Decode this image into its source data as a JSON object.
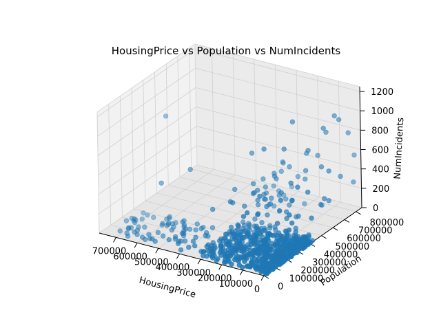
{
  "chart_data": {
    "type": "scatter",
    "title": "HousingPrice vs Population vs NumIncidents",
    "xlabel": "HousingPrice",
    "ylabel": "Population",
    "zlabel": "NumIncidents",
    "xlim": [
      0,
      780000
    ],
    "ylim": [
      0,
      850000
    ],
    "zlim": [
      0,
      1250
    ],
    "x_ticks": [
      {
        "value": 0,
        "label": "0"
      },
      {
        "value": 100000,
        "label": "100000"
      },
      {
        "value": 200000,
        "label": "200000"
      },
      {
        "value": 300000,
        "label": "300000"
      },
      {
        "value": 400000,
        "label": "400000"
      },
      {
        "value": 500000,
        "label": "500000"
      },
      {
        "value": 600000,
        "label": "600000"
      },
      {
        "value": 700000,
        "label": "700000"
      }
    ],
    "y_ticks": [
      {
        "value": 0,
        "label": "0"
      },
      {
        "value": 100000,
        "label": "100000"
      },
      {
        "value": 200000,
        "label": "200000"
      },
      {
        "value": 300000,
        "label": "300000"
      },
      {
        "value": 400000,
        "label": "400000"
      },
      {
        "value": 500000,
        "label": "500000"
      },
      {
        "value": 600000,
        "label": "600000"
      },
      {
        "value": 700000,
        "label": "700000"
      },
      {
        "value": 800000,
        "label": "800000"
      }
    ],
    "z_ticks": [
      {
        "value": 0,
        "label": "0"
      },
      {
        "value": 200,
        "label": "200"
      },
      {
        "value": 400,
        "label": "400"
      },
      {
        "value": 600,
        "label": "600"
      },
      {
        "value": 800,
        "label": "800"
      },
      {
        "value": 1000,
        "label": "1000"
      },
      {
        "value": 1200,
        "label": "1200"
      }
    ],
    "grid": true,
    "marker_color": "#1f77b4",
    "pane_colors": [
      "#f2f2f2",
      "#ebebeb",
      "#e6e6e6"
    ],
    "grid_color": "#d0d0d0"
  }
}
